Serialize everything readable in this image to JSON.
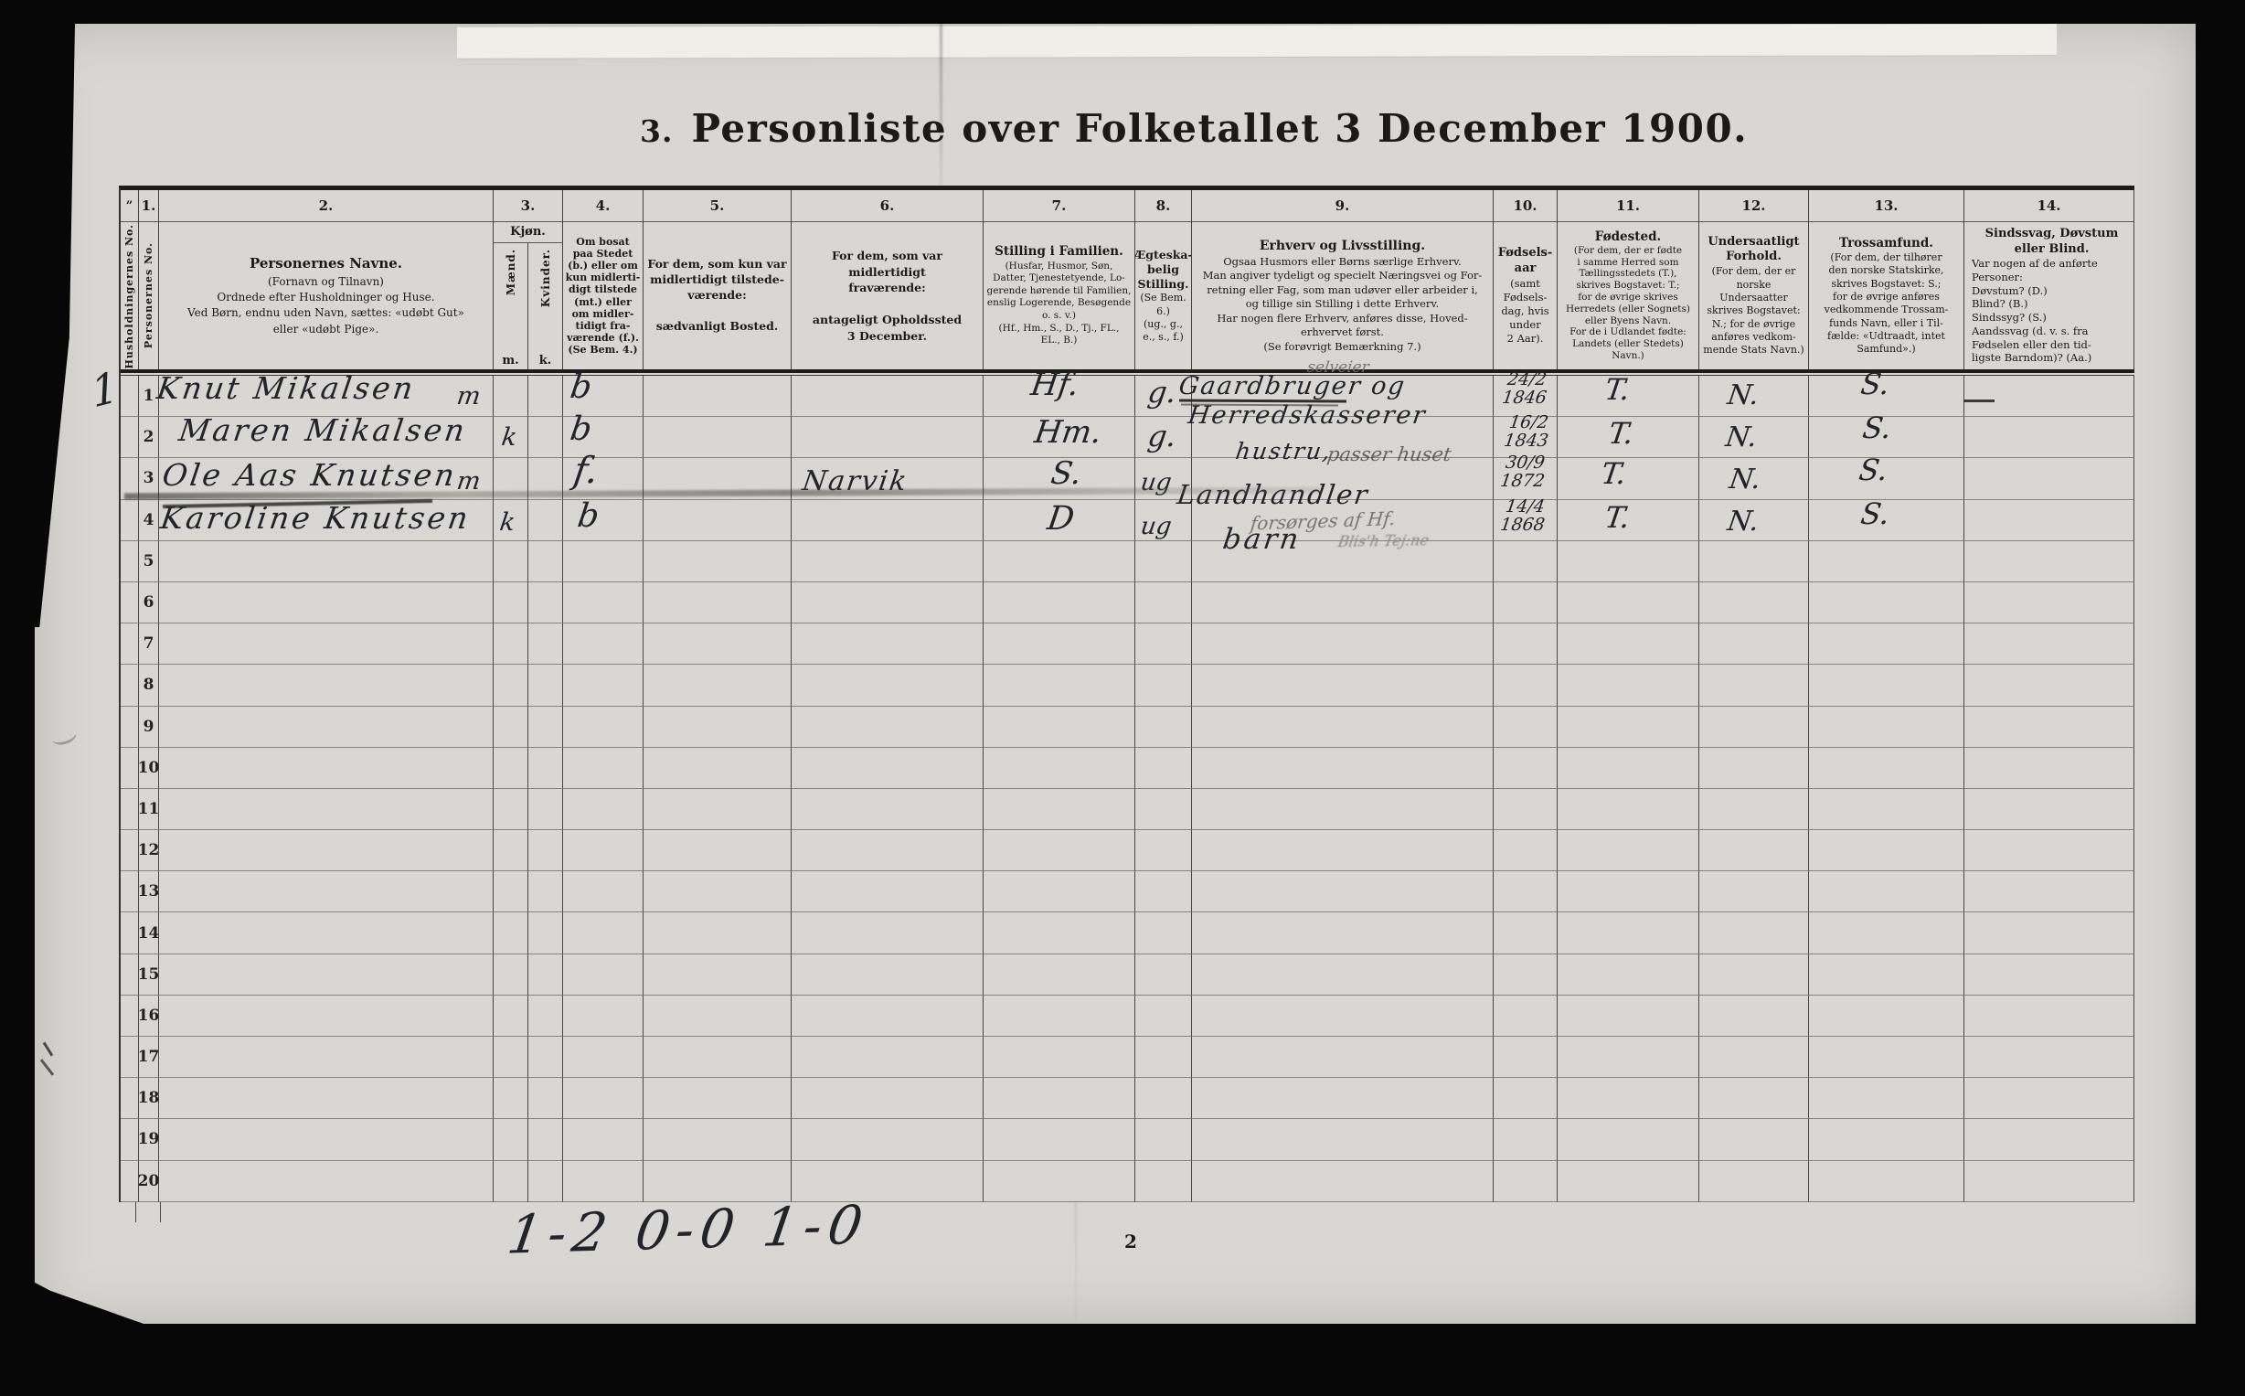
{
  "page": {
    "title_prefix": "3.",
    "title_main": "Personliste over Folketallet 3 December 1900.",
    "page_number": "2",
    "bottom_tally": "1-2  0-0 1-0"
  },
  "table": {
    "row_numbers": [
      "1",
      "2",
      "3",
      "4",
      "5",
      "6",
      "7",
      "8",
      "9",
      "10",
      "11",
      "12",
      "13",
      "14",
      "15",
      "16",
      "17",
      "18",
      "19",
      "20"
    ],
    "header": {
      "hh": {
        "ditto": "”",
        "vertical": "Husholdningernes No."
      },
      "c1": {
        "num": "1.",
        "vertical": "Personernes No."
      },
      "c2": {
        "num": "2.",
        "title": "Personernes Navne.",
        "body": "(Fornavn og Tilnavn)\nOrdnede efter Husholdninger og Huse.\nVed Børn, endnu uden Navn, sættes: «udøbt Gut»\neller «udøbt Pige»."
      },
      "c3": {
        "num": "3.",
        "title": "Kjøn.",
        "male_vertical": "Mænd.",
        "female_vertical": "Kvinder.",
        "male_abbr": "m.",
        "female_abbr": "k."
      },
      "c4": {
        "num": "4.",
        "body": "Om bosat\npaa Stedet\n(b.) eller om\nkun midlerti-\ndigt tilstede\n(mt.) eller\nom midler-\ntidigt fra-\nværende (f.).\n(Se Bem. 4.)"
      },
      "c5": {
        "num": "5.",
        "body": "For dem, som kun var\nmidlertidigt tilstede-\nværende:\n\nsædvanligt Bosted."
      },
      "c6": {
        "num": "6.",
        "body": "For dem, som var\nmidlertidigt\nfraværende:\n\nantageligt Opholdssted\n3 December."
      },
      "c7": {
        "num": "7.",
        "title": "Stilling i Familien.",
        "body": "(Husfar, Husmor, Søn,\nDatter, Tjenestetyende, Lo-\ngerende hørende til Familien,\nenslig Logerende, Besøgende\no. s. v.)\n(Hf., Hm., S., D., Tj., FL.,\nEL., B.)"
      },
      "c8": {
        "num": "8.",
        "title": "Ægteska-\nbelig\nStilling.",
        "body": "(Se Bem. 6.)\n(ug., g.,\ne., s., f.)"
      },
      "c9": {
        "num": "9.",
        "title": "Erhverv og Livsstilling.",
        "body": "Ogsaa Husmors eller Børns særlige Erhverv.\nMan angiver tydeligt og specielt Næringsvei og For-\nretning eller Fag, som man udøver eller arbeider i,\nog tillige sin Stilling i dette Erhverv.\nHar nogen flere Erhverv, anføres disse, Hoved-\nerhvervet først.\n(Se forøvrigt Bemærkning 7.)"
      },
      "c10": {
        "num": "10.",
        "title": "Fødsels-\naar",
        "body": "(samt\nFødsels-\ndag, hvis\nunder\n2 Aar)."
      },
      "c11": {
        "num": "11.",
        "title": "Fødested.",
        "body": "(For dem, der er fødte\ni samme Herred som\nTællingsstedets (T.),\nskrives Bogstavet: T.;\nfor de øvrige skrives\nHerredets (eller Sognets)\neller Byens Navn.\nFor de i Udlandet fødte:\nLandets (eller Stedets)\nNavn.)"
      },
      "c12": {
        "num": "12.",
        "title": "Undersaatligt\nForhold.",
        "body": "(For dem, der er\nnorske Undersaatter\nskrives Bogstavet:\nN.; for de øvrige\nanføres vedkom-\nmende Stats Navn.)"
      },
      "c13": {
        "num": "13.",
        "title": "Trossamfund.",
        "body": "(For dem, der tilhører\nden norske Statskirke,\nskrives Bogstavet: S.;\nfor de øvrige anføres\nvedkommende Trossam-\nfunds Navn, eller i Til-\nfælde: «Udtraadt, intet\nSamfund».)"
      },
      "c14": {
        "num": "14.",
        "title": "Sindssvag, Døvstum\neller Blind.",
        "body": "Var nogen af de anførte\nPersoner:\nDøvstum?   (D.)\nBlind?   (B.)\nSindssyg?   (S.)\nAandssvag (d. v. s. fra\nFødselen eller den tid-\nligste Barndom)? (Aa.)"
      }
    },
    "entries": [
      {
        "household_no": "1",
        "name": "Knut Mikalsen",
        "sex": "m",
        "residence_status": "b",
        "family_position": "Hf.",
        "marital_status": "g.",
        "occupation_pencil": "selveier",
        "occupation_line1": "Gaardbruger og",
        "occupation_line2": "Herredskasserer",
        "birth": "24/2\n1846",
        "birthplace": "T.",
        "citizenship": "N.",
        "religion": "S.",
        "disability": "—"
      },
      {
        "name": "Maren Mikalsen",
        "sex": "k",
        "residence_status": "b",
        "family_position": "Hm.",
        "marital_status": "g.",
        "occupation_line1": "hustru,",
        "occupation_pencil": "passer huset",
        "birth": "16/2\n1843",
        "birthplace": "T.",
        "citizenship": "N.",
        "religion": "S."
      },
      {
        "name": "Ole Aas Knutsen",
        "sex": "m",
        "residence_status": "f.",
        "temporary_abode": "Narvik",
        "family_position": "S.",
        "marital_status": "ug",
        "occupation_line1": "Landhandler",
        "birth": "30/9\n1872",
        "birthplace": "T.",
        "citizenship": "N.",
        "religion": "S.",
        "struck_out": true
      },
      {
        "name": "Karoline Knutsen",
        "sex": "k",
        "residence_status": "b",
        "family_position": "D",
        "marital_status": "ug",
        "occupation_pencil": "forsørges af Hf.",
        "occupation_line1": "barn",
        "occupation_pencil2": "Blis'h Tej:ne",
        "birth": "14/4\n1868",
        "birthplace": "T.",
        "citizenship": "N.",
        "religion": "S."
      }
    ]
  }
}
